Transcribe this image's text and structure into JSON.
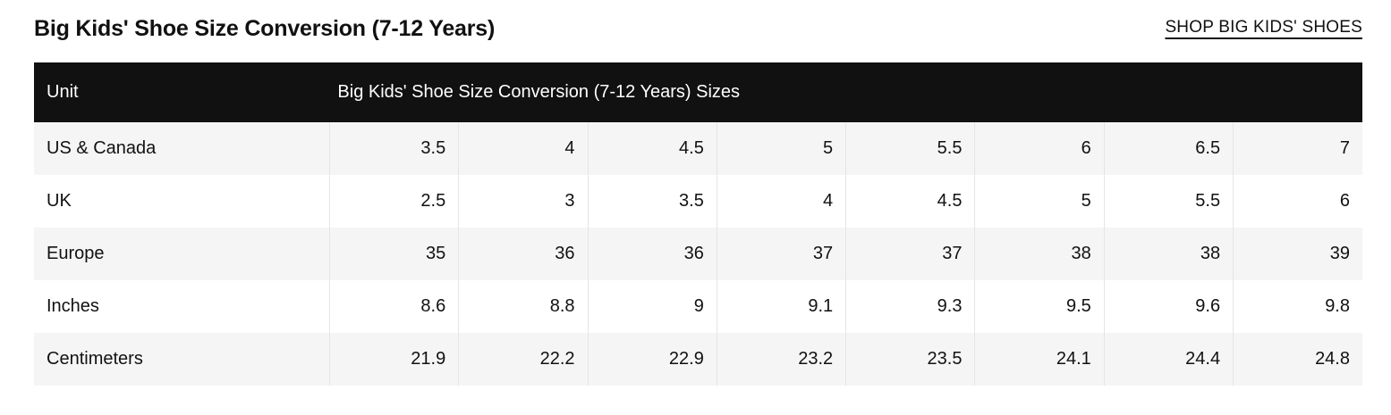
{
  "page": {
    "title": "Big Kids' Shoe Size Conversion (7-12 Years)",
    "shop_link_label": "SHOP BIG KIDS' SHOES"
  },
  "table": {
    "header": {
      "unit_label": "Unit",
      "sizes_label": "Big Kids' Shoe Size Conversion (7-12 Years) Sizes"
    },
    "rows": [
      {
        "label": "US & Canada",
        "values": [
          "3.5",
          "4",
          "4.5",
          "5",
          "5.5",
          "6",
          "6.5",
          "7"
        ]
      },
      {
        "label": "UK",
        "values": [
          "2.5",
          "3",
          "3.5",
          "4",
          "4.5",
          "5",
          "5.5",
          "6"
        ]
      },
      {
        "label": "Europe",
        "values": [
          "35",
          "36",
          "36",
          "37",
          "37",
          "38",
          "38",
          "39"
        ]
      },
      {
        "label": "Inches",
        "values": [
          "8.6",
          "8.8",
          "9",
          "9.1",
          "9.3",
          "9.5",
          "9.6",
          "9.8"
        ]
      },
      {
        "label": "Centimeters",
        "values": [
          "21.9",
          "22.2",
          "22.9",
          "23.2",
          "23.5",
          "24.1",
          "24.4",
          "24.8"
        ]
      }
    ]
  },
  "colors": {
    "header_bg": "#111111",
    "header_text": "#ffffff",
    "alt_row_bg": "#f5f5f5",
    "divider": "#e5e5e5",
    "text": "#111111"
  }
}
